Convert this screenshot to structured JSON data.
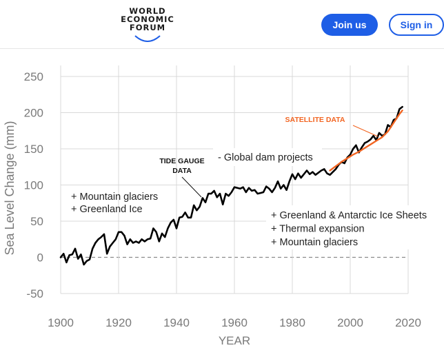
{
  "header": {
    "logo_lines": [
      "WORLD",
      "ECONOMIC",
      "FORUM"
    ],
    "join_label": "Join us",
    "sign_label": "Sign in",
    "brand_color": "#1e5ee6"
  },
  "chart_data": {
    "type": "line",
    "xlabel": "YEAR",
    "ylabel": "Sea Level Change (mm)",
    "xlim": [
      1900,
      2020
    ],
    "ylim": [
      -50,
      250
    ],
    "xticks": [
      1900,
      1920,
      1940,
      1960,
      1980,
      2000,
      2020
    ],
    "yticks": [
      -50,
      0,
      50,
      100,
      150,
      200,
      250
    ],
    "grid": true,
    "zero_line": "dashed",
    "series": [
      {
        "name": "TIDE GAUGE DATA",
        "color": "#000000",
        "x": [
          1900,
          1901,
          1902,
          1903,
          1904,
          1905,
          1906,
          1907,
          1908,
          1909,
          1910,
          1911,
          1912,
          1913,
          1914,
          1915,
          1916,
          1917,
          1918,
          1919,
          1920,
          1921,
          1922,
          1923,
          1924,
          1925,
          1926,
          1927,
          1928,
          1929,
          1930,
          1931,
          1932,
          1933,
          1934,
          1935,
          1936,
          1937,
          1938,
          1939,
          1940,
          1941,
          1942,
          1943,
          1944,
          1945,
          1946,
          1947,
          1948,
          1949,
          1950,
          1951,
          1952,
          1953,
          1954,
          1955,
          1956,
          1957,
          1958,
          1959,
          1960,
          1961,
          1962,
          1963,
          1964,
          1965,
          1966,
          1967,
          1968,
          1969,
          1970,
          1971,
          1972,
          1973,
          1974,
          1975,
          1976,
          1977,
          1978,
          1979,
          1980,
          1981,
          1982,
          1983,
          1984,
          1985,
          1986,
          1987,
          1988,
          1989,
          1990,
          1991,
          1992,
          1993,
          1994,
          1995,
          1996,
          1997,
          1998,
          1999,
          2000,
          2001,
          2002,
          2003,
          2004,
          2005,
          2006,
          2007,
          2008,
          2009,
          2010,
          2011,
          2012,
          2013,
          2014,
          2015,
          2016,
          2017,
          2018
        ],
        "values": [
          0,
          5,
          -7,
          3,
          4,
          12,
          -2,
          4,
          -10,
          -5,
          -3,
          12,
          20,
          25,
          28,
          32,
          5,
          15,
          20,
          25,
          35,
          35,
          30,
          18,
          25,
          20,
          22,
          20,
          25,
          22,
          25,
          26,
          40,
          35,
          22,
          33,
          28,
          40,
          48,
          52,
          40,
          55,
          56,
          62,
          55,
          55,
          72,
          65,
          70,
          82,
          76,
          88,
          88,
          92,
          83,
          88,
          73,
          88,
          85,
          90,
          97,
          96,
          95,
          97,
          90,
          96,
          92,
          93,
          88,
          89,
          90,
          98,
          95,
          90,
          96,
          105,
          95,
          100,
          93,
          105,
          115,
          108,
          116,
          110,
          115,
          120,
          115,
          118,
          114,
          117,
          120,
          122,
          116,
          114,
          118,
          122,
          128,
          132,
          130,
          138,
          142,
          150,
          155,
          145,
          152,
          158,
          160,
          163,
          168,
          162,
          172,
          168,
          170,
          183,
          180,
          190,
          192,
          205,
          208
        ]
      },
      {
        "name": "SATELLITE DATA",
        "color": "#f26522",
        "x": [
          1993,
          1995,
          1997,
          1999,
          2001,
          2003,
          2005,
          2007,
          2009,
          2011,
          2013,
          2015,
          2017,
          2018
        ],
        "values": [
          120,
          126,
          132,
          137,
          142,
          146,
          151,
          156,
          161,
          166,
          174,
          186,
          198,
          203
        ]
      }
    ],
    "annotations": [
      {
        "id": "tide",
        "lines": [
          "TIDE GAUGE",
          "DATA"
        ]
      },
      {
        "id": "satellite",
        "lines": [
          "SATELLITE DATA"
        ]
      },
      {
        "id": "dam",
        "lines": [
          "- Global dam projects"
        ]
      },
      {
        "id": "early",
        "lines": [
          "+ Mountain glaciers",
          "+ Greenland Ice"
        ]
      },
      {
        "id": "late",
        "lines": [
          "+ Greenland & Antarctic Ice Sheets",
          "+ Thermal expansion",
          "+ Mountain glaciers"
        ]
      }
    ]
  }
}
